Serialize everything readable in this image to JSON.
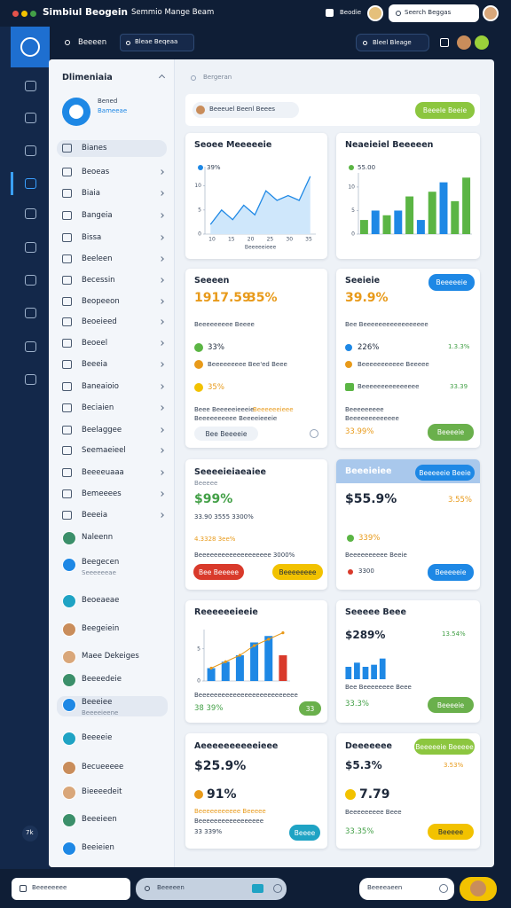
{
  "topbar": {
    "title": "Simbiul Beogein",
    "subtitle": "Semmio Mange Beam",
    "label": "Beodie",
    "search": "Seerch Beggas"
  },
  "toolbar": {
    "tab": "Beeeen",
    "search": "Bleae Beqeaa",
    "right_search": "Bleel Bleage"
  },
  "rail_badge": "7k",
  "sidebar": {
    "heading": "Dlimeniaia",
    "profile_name": "Bened",
    "profile_sub": "Bameeae",
    "items": [
      {
        "label": "Bianes"
      },
      {
        "label": "Beoeas"
      },
      {
        "label": "Biaia"
      },
      {
        "label": "Bangeia"
      },
      {
        "label": "Bissa"
      },
      {
        "label": "Beeleen"
      },
      {
        "label": "Becessin"
      },
      {
        "label": "Beopeeon"
      },
      {
        "label": "Beoeieed"
      },
      {
        "label": "Beoeel"
      },
      {
        "label": "Beeeia"
      },
      {
        "label": "Baneaioio"
      },
      {
        "label": "Beciaien"
      },
      {
        "label": "Beelaggee"
      },
      {
        "label": "Seemaeieel"
      },
      {
        "label": "Beeeeuaaa"
      },
      {
        "label": "Bemeeees"
      },
      {
        "label": "Beeeia"
      },
      {
        "label": "Naleenn"
      },
      {
        "label": "Beegecen",
        "sub": "Seeeeeeae"
      },
      {
        "label": "Beoeaeae"
      },
      {
        "label": "Beegeiein"
      },
      {
        "label": "Maee Dekeiges"
      },
      {
        "label": "Beeeedeie"
      },
      {
        "label": "Beeeiee",
        "sub": "Beeeeieene"
      },
      {
        "label": "Beeeeie"
      },
      {
        "label": "Becueeeee"
      },
      {
        "label": "Bieeeedeit"
      },
      {
        "label": "Beeeieen"
      },
      {
        "label": "Beeieien"
      }
    ]
  },
  "content": {
    "search": "Bergeran",
    "input": "Beeeuel Beenl Beees",
    "input_button": "Beeele Beeie"
  },
  "cards": [
    {
      "title": "Seoee Meeeeeie",
      "legend": "39%",
      "chart": {
        "type": "line",
        "values": [
          2,
          5,
          3,
          6,
          4,
          9,
          7,
          8,
          7,
          12
        ],
        "ylim": [
          0,
          14
        ],
        "yticks": [
          0,
          5,
          10
        ],
        "x_labels": [
          "10",
          "15",
          "20",
          "25",
          "30",
          "35"
        ],
        "caption": "Beeeeeieee",
        "color": "#1e88e5"
      }
    },
    {
      "title": "Neaeieiel Beeeeen",
      "legend": "55.00",
      "chart": {
        "type": "bar",
        "values": [
          3,
          5,
          4,
          5,
          8,
          3,
          9,
          11,
          7,
          12
        ],
        "ylim": [
          0,
          13
        ],
        "yticks": [
          0,
          5,
          10
        ],
        "colors": [
          "#5bb544",
          "#1e88e5",
          "#5bb544",
          "#1e88e5",
          "#5bb544",
          "#1e88e5",
          "#5bb544",
          "#1e88e5",
          "#5bb544",
          "#5bb544"
        ]
      }
    },
    {
      "title": "Seeeen",
      "big": "1917.59",
      "big_pct": "35%",
      "sub": "Beeeeeeeee Beeee",
      "row1": "33%",
      "row2": "Beeeeeeeee Bee'ed Beee",
      "row3": "35%",
      "note1": "Beee Beeeeeieeeie",
      "note1b": "Beeeeeeieee",
      "note2": "Beeeeeeeeee Beeeeieeeie",
      "pill": "Bee Beeeeie"
    },
    {
      "title": "Seeieie",
      "button": "Beeeeeie",
      "big": "39.9%",
      "sub": "Bee Beeeeeeeeeeeeeeeee",
      "row1": "226%",
      "row1v": "1.3.3%",
      "row2": "Beeeeeeeeeee Beeeee",
      "row3": "Beeeeeeeeeeeeeee",
      "row3v": "33.39",
      "note1": "Beeeeeeeee",
      "note2": "Beeeeeeeeeeeee",
      "foot": "33.99%",
      "button2": "Beeeeie"
    },
    {
      "title": "Seeeeieiaeaiee",
      "small": "Beeeee",
      "big": "$99%",
      "line1": "33.90 3555 3300%",
      "line2": "4.3328 3ee%",
      "line3": "Beeeeeeeeeeeeeeeeeee 3000%",
      "button_red": "Bee Beeeee",
      "button_yellow": "Beeeeeeee"
    },
    {
      "title": "Beeeieiee",
      "button": "Beeeeeie Beeie",
      "big": "$55.9%",
      "big2": "3.55%",
      "row": "339%",
      "sub": "Beeeeeeeeee Beeie",
      "val": "3300",
      "button2": "Beeeeeie"
    },
    {
      "title": "Reeeeeeieeie",
      "chart": {
        "type": "bar",
        "values": [
          2,
          3,
          4,
          6,
          7,
          4
        ],
        "ylim": [
          0,
          8
        ],
        "yticks": [
          0,
          5
        ],
        "colors": [
          "#1e88e5",
          "#1e88e5",
          "#1e88e5",
          "#1e88e5",
          "#1e88e5",
          "#d93a2b"
        ],
        "trend": [
          2,
          3,
          4,
          5.5,
          6.5,
          7.5
        ],
        "trend_color": "#e89a1a"
      },
      "caption": "Beeeeeeeeeeeeeeeeeeeeeeeeee",
      "val": "38 39%",
      "button": "33"
    },
    {
      "title": "Seeeee Beee",
      "big": "$289%",
      "big2": "13.54%",
      "chart": {
        "type": "bar",
        "values": [
          3,
          4,
          3,
          3.5,
          5
        ],
        "ylim": [
          0,
          6
        ],
        "colors": [
          "#1e88e5",
          "#1e88e5",
          "#1e88e5",
          "#1e88e5",
          "#1e88e5"
        ]
      },
      "caption": "Bee Beeeeeeee Beee",
      "val": "33.3%",
      "button": "Beeeeie"
    },
    {
      "title": "Aeeeeeeeeeeieee",
      "big": "$25.9%",
      "big2": "91%",
      "line1": "Beeeeeeeeeee Beeeee",
      "line2": "Beeeeeeeeeeeeeeeee",
      "line3": "33 339%",
      "button": "Beeee"
    },
    {
      "title": "Deeeeeee",
      "button": "Beeeeeie Beeeee",
      "big": "$5.3%",
      "big2": "3.53%",
      "big3": "7.79",
      "line1": "Beeeeeeeee Beee",
      "line2": "33.35%",
      "button2": "Beeeee"
    }
  ],
  "bottombar": {
    "input": "Beeeeeeee",
    "search": "Beeeeen",
    "right_input": "Beeeeaeen"
  }
}
